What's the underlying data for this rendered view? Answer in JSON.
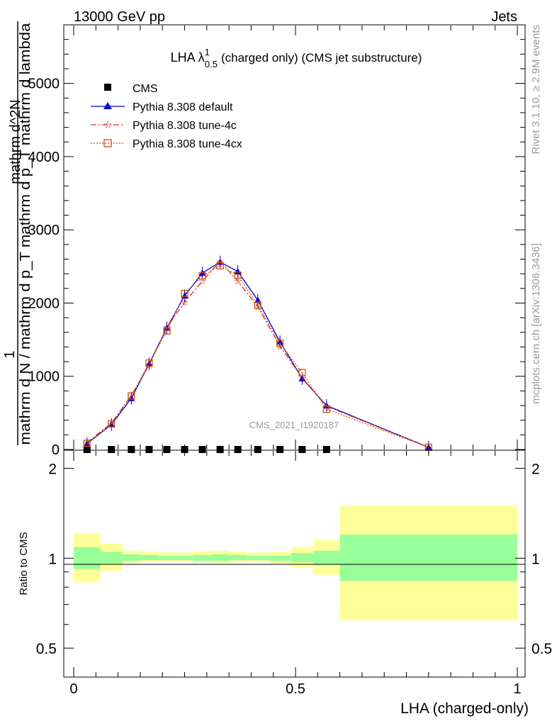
{
  "header": {
    "left": "13000 GeV pp",
    "right": "Jets",
    "watermark": "CMS_2021_I1920187",
    "side_top": "Rivet 3.1.10, ≥ 2.9M events",
    "side_bottom": "mcplots.cern.ch [arXiv:1306.3436]"
  },
  "title": {
    "main": "LHA λ",
    "sup": "1",
    "sub": "0.5",
    "rest": "(charged only) (CMS jet substructure)"
  },
  "axes": {
    "xlabel": "LHA (charged-only)",
    "ylabel_numerator": "1",
    "ylabel_denominator": "mathrm d N / mathrm d p_T mathrm d p_T mathrm d lambda",
    "ylabel_right": "mathrm d^2N",
    "ratio_ylabel": "Ratio to CMS",
    "x_ticks": [
      "0",
      "0.5",
      "1"
    ],
    "y_ticks": [
      "0",
      "1000",
      "2000",
      "3000",
      "4000",
      "5000"
    ],
    "ratio_ticks": [
      "0.5",
      "1",
      "2"
    ]
  },
  "colors": {
    "cms": "#000000",
    "default": "#0000cc",
    "tune4c": "#dd2a2a",
    "tune4cx": "#cc5511",
    "band_inner": "#99ff99",
    "band_outer": "#ffff99"
  },
  "chart_data": {
    "type": "line",
    "xlim": [
      0,
      1
    ],
    "ylim": [
      0,
      5800
    ],
    "ratio_ylim": [
      0.4,
      2.3
    ],
    "ratio_scale": "log",
    "legend_position": "top-left",
    "bin_edges": [
      0,
      0.06,
      0.11,
      0.15,
      0.19,
      0.23,
      0.27,
      0.31,
      0.35,
      0.39,
      0.44,
      0.49,
      0.54,
      0.6,
      1.0
    ],
    "x": [
      0.03,
      0.085,
      0.13,
      0.17,
      0.21,
      0.25,
      0.29,
      0.33,
      0.37,
      0.415,
      0.465,
      0.515,
      0.57,
      0.8
    ],
    "series": [
      {
        "name": "CMS",
        "marker": "square",
        "values": [
          0,
          0,
          0,
          0,
          0,
          0,
          0,
          0,
          0,
          0,
          0,
          0,
          0,
          0
        ]
      },
      {
        "name": "Pythia 8.308 default",
        "marker": "triangle",
        "values": [
          80,
          340,
          700,
          1170,
          1660,
          2100,
          2410,
          2560,
          2430,
          2040,
          1470,
          970,
          600,
          30
        ]
      },
      {
        "name": "Pythia 8.308 tune-4c",
        "marker": "star",
        "values": [
          95,
          360,
          740,
          1150,
          1670,
          2010,
          2300,
          2570,
          2300,
          1950,
          1410,
          980,
          590,
          30
        ]
      },
      {
        "name": "Pythia 8.308 tune-4cx",
        "marker": "open-square",
        "values": [
          85,
          350,
          730,
          1180,
          1620,
          2130,
          2370,
          2510,
          2380,
          1970,
          1450,
          1050,
          550,
          30
        ]
      }
    ],
    "ratio_band_inner": [
      [
        0.92,
        1.09
      ],
      [
        0.96,
        1.05
      ],
      [
        0.98,
        1.03
      ],
      [
        0.985,
        1.025
      ],
      [
        0.985,
        1.02
      ],
      [
        0.985,
        1.02
      ],
      [
        0.98,
        1.025
      ],
      [
        0.98,
        1.03
      ],
      [
        0.985,
        1.025
      ],
      [
        0.985,
        1.02
      ],
      [
        0.98,
        1.02
      ],
      [
        0.97,
        1.04
      ],
      [
        0.95,
        1.06
      ],
      [
        0.84,
        1.2
      ]
    ],
    "ratio_band_outer": [
      [
        0.83,
        1.21
      ],
      [
        0.91,
        1.12
      ],
      [
        0.965,
        1.06
      ],
      [
        0.975,
        1.05
      ],
      [
        0.975,
        1.045
      ],
      [
        0.975,
        1.045
      ],
      [
        0.97,
        1.055
      ],
      [
        0.965,
        1.06
      ],
      [
        0.97,
        1.05
      ],
      [
        0.975,
        1.045
      ],
      [
        0.96,
        1.05
      ],
      [
        0.93,
        1.09
      ],
      [
        0.88,
        1.15
      ],
      [
        0.62,
        1.5
      ]
    ]
  }
}
